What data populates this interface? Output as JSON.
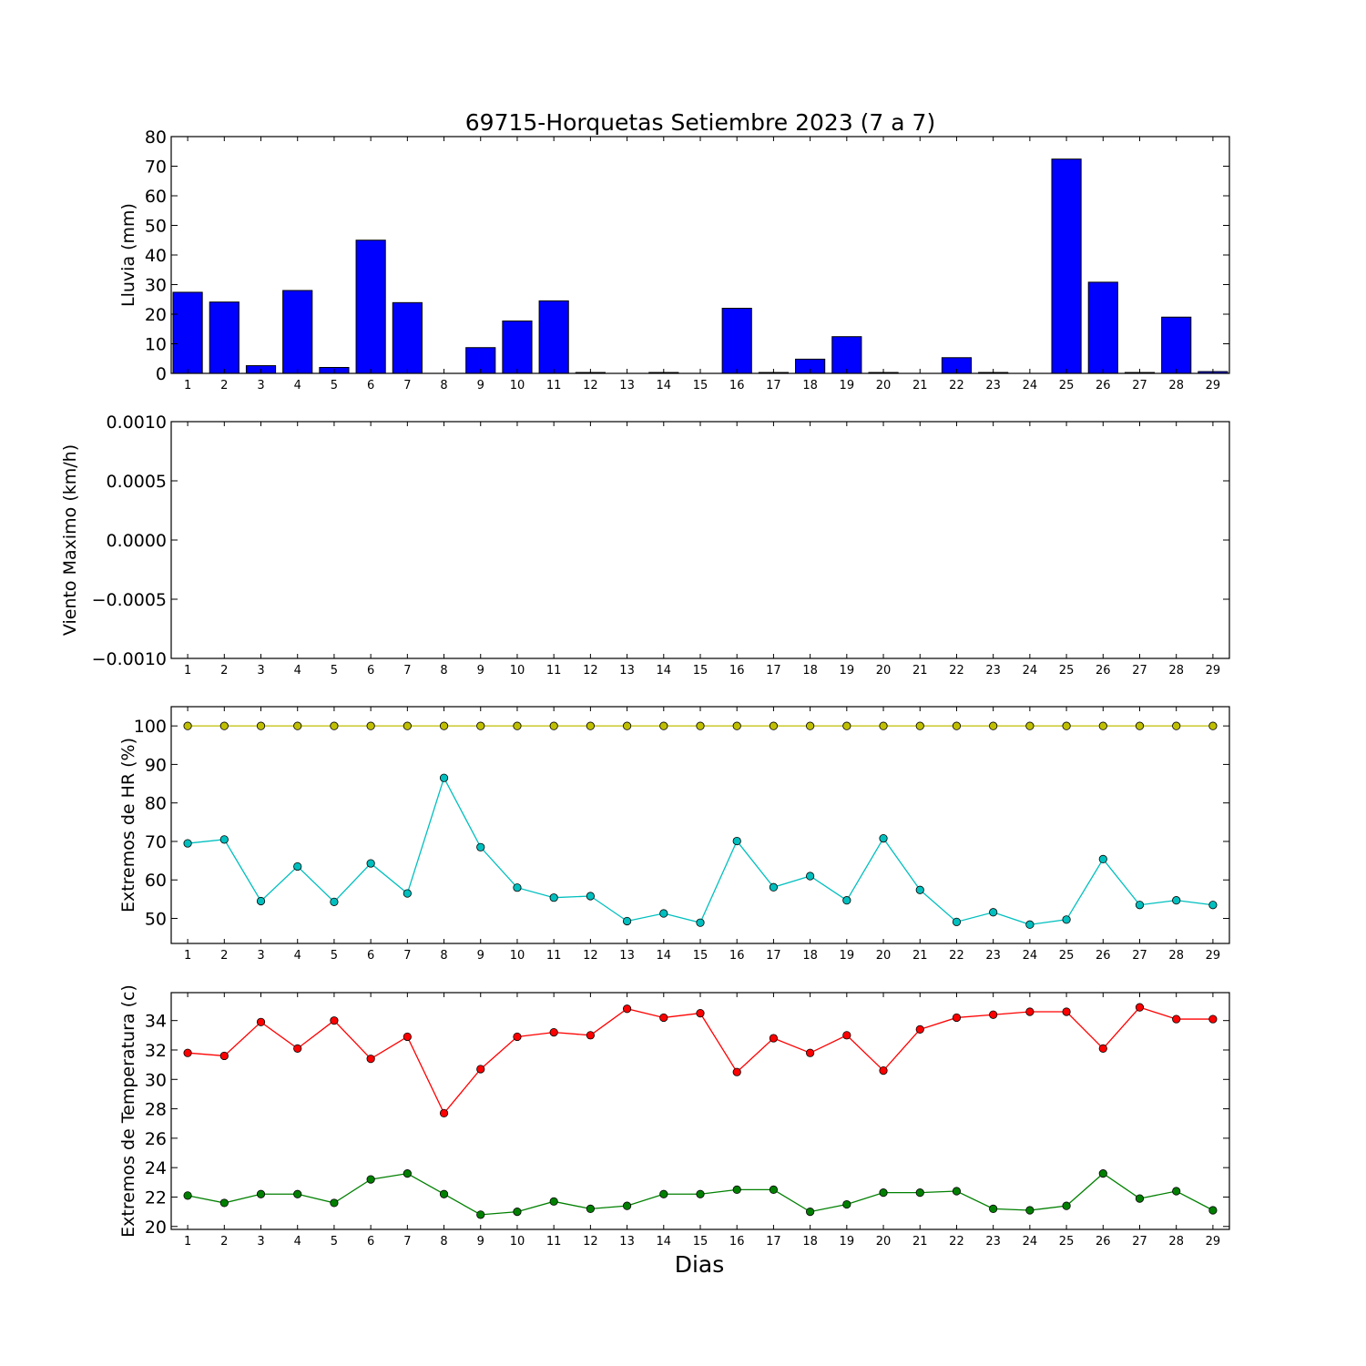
{
  "title": "69715-Horquetas Setiembre 2023  (7 a 7)",
  "xlabel": "Dias",
  "colors": {
    "rain": "#0000ff",
    "hr_max": "#bfbf00",
    "hr_min": "#00bfbf",
    "temp_max": "#ff0000",
    "temp_min": "#008000"
  },
  "chart_data": [
    {
      "type": "bar",
      "ylabel": "Lluvia (mm)",
      "ylim": [
        0,
        80
      ],
      "yticks": [
        0,
        10,
        20,
        30,
        40,
        50,
        60,
        70,
        80
      ],
      "ytick_labels": [
        "0",
        "10",
        "20",
        "30",
        "40",
        "50",
        "60",
        "70",
        "80"
      ],
      "categories": [
        "1",
        "2",
        "3",
        "4",
        "5",
        "6",
        "7",
        "8",
        "9",
        "10",
        "11",
        "12",
        "13",
        "14",
        "15",
        "16",
        "17",
        "18",
        "19",
        "20",
        "21",
        "22",
        "23",
        "24",
        "25",
        "26",
        "27",
        "28",
        "29"
      ],
      "values": [
        27.4,
        24.1,
        2.6,
        28.0,
        2.0,
        45.0,
        23.9,
        0,
        8.7,
        17.7,
        24.5,
        0.3,
        0,
        0.3,
        0,
        22.0,
        0.3,
        4.8,
        12.4,
        0.3,
        0,
        5.3,
        0.3,
        0,
        72.4,
        30.8,
        0.3,
        19.0,
        0.6
      ]
    },
    {
      "type": "line",
      "ylabel": "Viento Maximo (km/h)",
      "ylim": [
        -0.001,
        0.001
      ],
      "yticks": [
        -0.001,
        -0.0005,
        0.0,
        0.0005,
        0.001
      ],
      "ytick_labels": [
        "−0.0010",
        "−0.0005",
        "0.0000",
        "0.0005",
        "0.0010"
      ],
      "categories": [
        "1",
        "2",
        "3",
        "4",
        "5",
        "6",
        "7",
        "8",
        "9",
        "10",
        "11",
        "12",
        "13",
        "14",
        "15",
        "16",
        "17",
        "18",
        "19",
        "20",
        "21",
        "22",
        "23",
        "24",
        "25",
        "26",
        "27",
        "28",
        "29"
      ],
      "series": []
    },
    {
      "type": "line",
      "ylabel": "Extremos de HR (%)",
      "ylim": [
        43.5,
        105
      ],
      "yticks": [
        50,
        60,
        70,
        80,
        90,
        100
      ],
      "ytick_labels": [
        "50",
        "60",
        "70",
        "80",
        "90",
        "100"
      ],
      "categories": [
        "1",
        "2",
        "3",
        "4",
        "5",
        "6",
        "7",
        "8",
        "9",
        "10",
        "11",
        "12",
        "13",
        "14",
        "15",
        "16",
        "17",
        "18",
        "19",
        "20",
        "21",
        "22",
        "23",
        "24",
        "25",
        "26",
        "27",
        "28",
        "29"
      ],
      "series": [
        {
          "values": [
            100,
            100,
            100,
            100,
            100,
            100,
            100,
            100,
            100,
            100,
            100,
            100,
            100,
            100,
            100,
            100,
            100,
            100,
            100,
            100,
            100,
            100,
            100,
            100,
            100,
            100,
            100,
            100,
            100
          ]
        },
        {
          "values": [
            69.5,
            70.5,
            54.5,
            63.5,
            54.3,
            64.3,
            56.5,
            86.5,
            68.5,
            58.0,
            55.4,
            55.8,
            49.3,
            51.3,
            48.9,
            70.1,
            58.1,
            61.0,
            54.7,
            70.8,
            57.4,
            49.1,
            51.6,
            48.4,
            49.7,
            65.4,
            53.5,
            54.7,
            53.5
          ]
        }
      ]
    },
    {
      "type": "line",
      "ylabel": "Extremos de Temperatura (c)",
      "ylim": [
        19.8,
        35.9
      ],
      "yticks": [
        20,
        22,
        24,
        26,
        28,
        30,
        32,
        34
      ],
      "ytick_labels": [
        "20",
        "22",
        "24",
        "26",
        "28",
        "30",
        "32",
        "34"
      ],
      "categories": [
        "1",
        "2",
        "3",
        "4",
        "5",
        "6",
        "7",
        "8",
        "9",
        "10",
        "11",
        "12",
        "13",
        "14",
        "15",
        "16",
        "17",
        "18",
        "19",
        "20",
        "21",
        "22",
        "23",
        "24",
        "25",
        "26",
        "27",
        "28",
        "29"
      ],
      "series": [
        {
          "values": [
            31.8,
            31.6,
            33.9,
            32.1,
            34.0,
            31.4,
            32.9,
            27.7,
            30.7,
            32.9,
            33.2,
            33.0,
            34.8,
            34.2,
            34.5,
            30.5,
            32.8,
            31.8,
            33.0,
            30.6,
            33.4,
            34.2,
            34.4,
            34.6,
            34.6,
            32.1,
            34.9,
            34.1,
            34.1
          ]
        },
        {
          "values": [
            22.1,
            21.6,
            22.2,
            22.2,
            21.6,
            23.2,
            23.6,
            22.2,
            20.8,
            21.0,
            21.7,
            21.2,
            21.4,
            22.2,
            22.2,
            22.5,
            22.5,
            21.0,
            21.5,
            22.3,
            22.3,
            22.4,
            21.2,
            21.1,
            21.4,
            23.6,
            21.9,
            22.4,
            21.1
          ]
        }
      ]
    }
  ]
}
